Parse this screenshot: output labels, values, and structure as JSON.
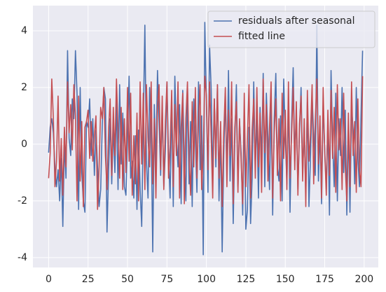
{
  "chart_data": {
    "type": "line",
    "x": [
      0,
      1,
      2,
      3,
      4,
      5,
      6,
      7,
      8,
      9,
      10,
      11,
      12,
      13,
      14,
      15,
      16,
      17,
      18,
      19,
      20,
      21,
      22,
      23,
      24,
      25,
      26,
      27,
      28,
      29,
      30,
      31,
      32,
      33,
      34,
      35,
      36,
      37,
      38,
      39,
      40,
      41,
      42,
      43,
      44,
      45,
      46,
      47,
      48,
      49,
      50,
      51,
      52,
      53,
      54,
      55,
      56,
      57,
      58,
      59,
      60,
      61,
      62,
      63,
      64,
      65,
      66,
      67,
      68,
      69,
      70,
      71,
      72,
      73,
      74,
      75,
      76,
      77,
      78,
      79,
      80,
      81,
      82,
      83,
      84,
      85,
      86,
      87,
      88,
      89,
      90,
      91,
      92,
      93,
      94,
      95,
      96,
      97,
      98,
      99,
      100,
      101,
      102,
      103,
      104,
      105,
      106,
      107,
      108,
      109,
      110,
      111,
      112,
      113,
      114,
      115,
      116,
      117,
      118,
      119,
      120,
      121,
      122,
      123,
      124,
      125,
      126,
      127,
      128,
      129,
      130,
      131,
      132,
      133,
      134,
      135,
      136,
      137,
      138,
      139,
      140,
      141,
      142,
      143,
      144,
      145,
      146,
      147,
      148,
      149,
      150,
      151,
      152,
      153,
      154,
      155,
      156,
      157,
      158,
      159,
      160,
      161,
      162,
      163,
      164,
      165,
      166,
      167,
      168,
      169,
      170,
      171,
      172,
      173,
      174,
      175,
      176,
      177,
      178,
      179,
      180,
      181,
      182,
      183,
      184,
      185,
      186,
      187,
      188,
      189,
      190,
      191,
      192,
      193,
      194,
      195,
      196,
      197,
      198,
      199
    ],
    "series": [
      {
        "name": "residuals after seasonal",
        "color": "#4c72b0",
        "values": [
          -0.3,
          0.6,
          0.9,
          0.4,
          -0.8,
          -1.5,
          -0.9,
          -2.0,
          -0.5,
          -2.9,
          0.0,
          -1.2,
          3.3,
          0.2,
          -0.4,
          1.6,
          0.9,
          3.3,
          1.8,
          -2.3,
          2.0,
          -1.0,
          -2.0,
          -2.4,
          0.8,
          0.6,
          1.6,
          -0.4,
          0.9,
          -1.1,
          0.5,
          -0.8,
          -2.2,
          -1.6,
          0.7,
          2.0,
          1.6,
          -3.1,
          -1.0,
          0.9,
          -1.4,
          0.6,
          -1.0,
          1.5,
          -1.6,
          2.1,
          -0.7,
          1.1,
          -1.5,
          -1.8,
          0.2,
          2.4,
          -1.2,
          -0.6,
          -1.9,
          0.3,
          -2.3,
          0.5,
          -1.6,
          -2.9,
          0.7,
          4.2,
          -0.6,
          -1.9,
          2.0,
          0.5,
          -3.8,
          1.4,
          -0.8,
          2.6,
          0.8,
          -1.1,
          1.3,
          -1.5,
          -0.2,
          2.2,
          -0.4,
          -1.9,
          1.6,
          -2.2,
          2.4,
          0.3,
          -0.8,
          1.4,
          -2.1,
          1.9,
          -0.5,
          -2.0,
          2.1,
          -1.4,
          0.8,
          -2.2,
          1.6,
          0.2,
          -1.7,
          2.2,
          -0.9,
          1.0,
          -3.9,
          4.3,
          1.5,
          -1.7,
          3.5,
          2.0,
          -1.2,
          1.6,
          -0.8,
          2.1,
          -2.0,
          0.4,
          -3.8,
          -0.4,
          1.8,
          -1.1,
          2.6,
          -1.3,
          0.9,
          -2.8,
          0.1,
          2.1,
          -1.5,
          0.8,
          -0.3,
          -2.5,
          1.2,
          -3.0,
          -2.3,
          0.6,
          -2.8,
          -1.2,
          2.2,
          -0.8,
          0.9,
          -1.9,
          1.3,
          -0.6,
          2.5,
          -1.5,
          1.8,
          0.2,
          -1.6,
          1.4,
          -2.5,
          0.9,
          2.5,
          -0.8,
          -1.3,
          1.0,
          -2.0,
          2.3,
          0.2,
          -1.4,
          1.5,
          -2.4,
          0.7,
          2.7,
          -0.6,
          1.1,
          -1.6,
          0.4,
          2.0,
          -1.0,
          0.6,
          -1.8,
          1.5,
          -2.2,
          -0.4,
          1.7,
          0.3,
          -1.1,
          4.2,
          -1.3,
          0.5,
          -2.1,
          1.4,
          -0.2,
          -1.6,
          0.8,
          -2.5,
          2.6,
          0.1,
          -1.5,
          1.8,
          -2.0,
          0.9,
          -0.4,
          2.0,
          -1.0,
          1.2,
          -2.5,
          0.6,
          -2.4,
          1.3,
          0.5,
          -1.4,
          2.0,
          -0.5,
          -1.5,
          1.0,
          3.3
        ]
      },
      {
        "name": "fitted line",
        "color": "#c44e52",
        "values": [
          -1.2,
          -0.3,
          2.3,
          0.9,
          -1.5,
          -0.6,
          1.7,
          -1.3,
          0.2,
          -1.8,
          0.6,
          -0.8,
          2.2,
          0.4,
          1.4,
          -0.2,
          2.1,
          1.0,
          -2.0,
          1.7,
          -1.3,
          0.8,
          -2.2,
          0.6,
          0.8,
          1.2,
          -0.5,
          0.8,
          -0.6,
          0.3,
          1.0,
          -2.3,
          -0.8,
          1.3,
          0.9,
          2.0,
          -0.4,
          -1.6,
          0.5,
          1.6,
          -1.1,
          1.3,
          -0.4,
          2.3,
          0.5,
          -1.2,
          1.3,
          -1.6,
          0.9,
          -1.0,
          2.0,
          -0.6,
          1.8,
          -1.8,
          0.3,
          -1.4,
          1.1,
          -2.0,
          2.2,
          -0.7,
          1.8,
          -1.6,
          2.1,
          0.2,
          -0.8,
          2.2,
          -1.4,
          0.9,
          -1.9,
          1.3,
          2.1,
          -0.9,
          1.7,
          -1.6,
          0.8,
          2.2,
          -1.2,
          -0.1,
          1.9,
          -1.5,
          1.4,
          -0.4,
          2.2,
          -1.9,
          0.6,
          1.8,
          -2.1,
          0.9,
          2.2,
          -0.5,
          -1.8,
          1.5,
          -0.8,
          2.0,
          -1.2,
          0.9,
          2.1,
          -1.6,
          -0.3,
          2.4,
          1.7,
          -0.9,
          2.2,
          0.3,
          -1.9,
          1.6,
          -0.5,
          2.1,
          -1.2,
          0.8,
          -2.2,
          0.4,
          2.0,
          -1.5,
          1.2,
          -0.4,
          2.2,
          -2.1,
          0.6,
          1.5,
          -1.7,
          0.9,
          -0.6,
          -2.1,
          1.8,
          -1.5,
          0.2,
          2.1,
          -1.9,
          0.5,
          1.6,
          -1.2,
          2.0,
          -0.8,
          1.1,
          -1.7,
          2.3,
          -0.3,
          1.4,
          -1.3,
          0.6,
          2.2,
          -1.9,
          0.4,
          1.6,
          -1.1,
          0.9,
          -2.0,
          1.8,
          -0.5,
          1.2,
          -1.6,
          2.2,
          -1.2,
          0.3,
          2.0,
          -0.9,
          1.5,
          -1.8,
          0.7,
          1.7,
          -1.3,
          0.9,
          -2.2,
          1.9,
          -0.6,
          0.4,
          2.1,
          -1.4,
          0.8,
          2.3,
          -0.7,
          1.0,
          -1.9,
          2.0,
          -0.3,
          -1.8,
          1.2,
          -1.1,
          1.9,
          -0.5,
          1.3,
          -1.7,
          2.1,
          -0.2,
          0.9,
          -1.6,
          1.8,
          -0.8,
          -2.0,
          1.1,
          -1.5,
          2.2,
          -0.4,
          0.8,
          -1.7,
          1.6,
          -0.9,
          -1.5,
          2.4
        ]
      }
    ],
    "xlim": [
      -9.95,
      208.95
    ],
    "xticks": [
      0,
      25,
      50,
      75,
      100,
      125,
      150,
      175,
      200
    ],
    "ylim": [
      -4.35,
      4.89
    ],
    "yticks": [
      -4,
      -2,
      0,
      2,
      4
    ],
    "grid": true,
    "legend": "upper right"
  }
}
